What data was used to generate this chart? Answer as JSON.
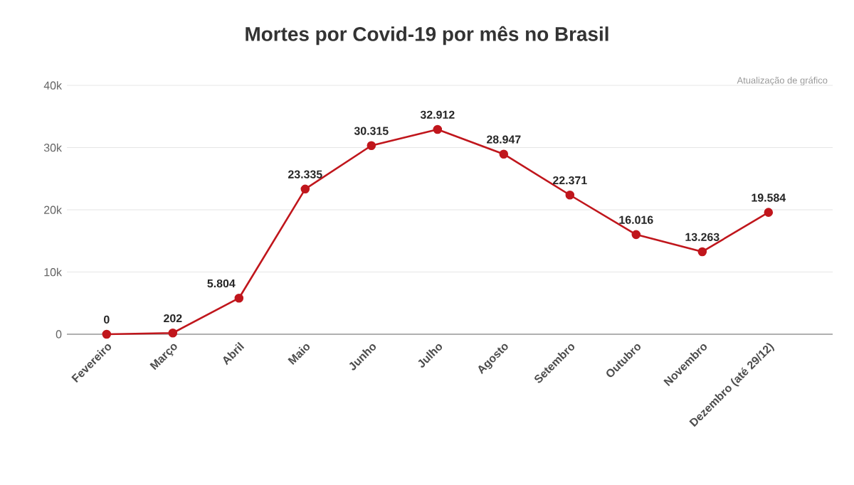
{
  "chart_data": {
    "type": "line",
    "title": "Mortes por Covid-19 por mês no Brasil",
    "annotations": [
      "Atualização de gráfico"
    ],
    "categories": [
      "Fevereiro",
      "Março",
      "Abril",
      "Maio",
      "Junho",
      "Julho",
      "Agosto",
      "Setembro",
      "Outubro",
      "Novembro",
      "Dezembro (até 29/12)"
    ],
    "values": [
      0,
      202,
      5804,
      23335,
      30315,
      32912,
      28947,
      22371,
      16016,
      13263,
      19584
    ],
    "value_labels": [
      "0",
      "202",
      "5.804",
      "23.335",
      "30.315",
      "32.912",
      "28.947",
      "22.371",
      "16.016",
      "13.263",
      "19.584"
    ],
    "color": "#c0161c",
    "marker": "circle",
    "grid": "y",
    "ylim": [
      0,
      40000
    ],
    "yticks": [
      {
        "value": 0,
        "label": "0"
      },
      {
        "value": 10000,
        "label": "10k"
      },
      {
        "value": 20000,
        "label": "20k"
      },
      {
        "value": 30000,
        "label": "30k"
      },
      {
        "value": 40000,
        "label": "40k"
      }
    ]
  }
}
